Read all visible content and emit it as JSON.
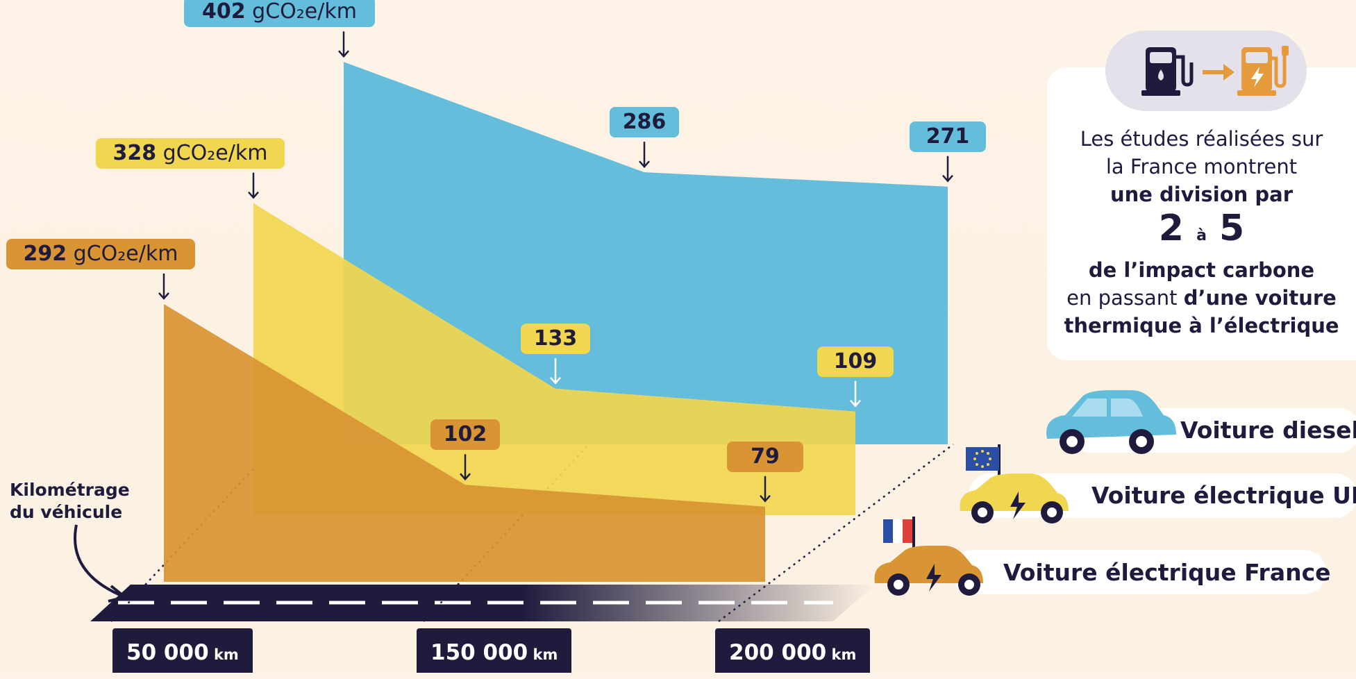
{
  "chart_data": {
    "type": "area",
    "x": [
      "50 000 km",
      "150 000 km",
      "200 000 km"
    ],
    "unit": "gCO₂e/km",
    "series": [
      {
        "name": "Voiture diesel",
        "values": [
          402,
          286,
          271
        ],
        "color": "#63bddb"
      },
      {
        "name": "Voiture électrique UE",
        "values": [
          328,
          133,
          109
        ],
        "color": "#f1d64f"
      },
      {
        "name": "Voiture électrique France",
        "values": [
          292,
          102,
          79
        ],
        "color": "#d99433"
      }
    ],
    "xlabel": "Kilométrage\ndu véhicule",
    "start_labels": [
      "402 gCO₂e/km",
      "328 gCO₂e/km",
      "292 gCO₂e/km"
    ],
    "x_ticks": [
      "50 000",
      "150 000",
      "200 000"
    ],
    "x_tick_unit": "km"
  },
  "summary": {
    "line1": "Les études réalisées sur",
    "line2": "la France montrent",
    "line3": "une division par",
    "big_from": "2",
    "big_mid": "à",
    "big_to": "5",
    "line5": "de l’impact carbone",
    "line6_pre": "en passant ",
    "line6_bold": "d’une voiture",
    "line7": "thermique à l’électrique"
  },
  "icons": [
    "fuel-pump-icon",
    "arrow-right-icon",
    "charging-station-icon",
    "car-icon",
    "eu-flag-icon",
    "france-flag-icon",
    "lightning-icon"
  ]
}
